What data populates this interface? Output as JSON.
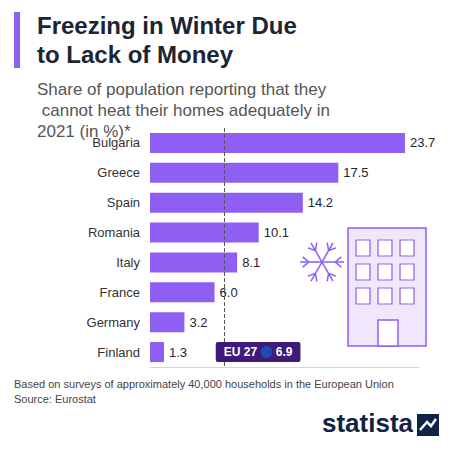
{
  "chart_data": {
    "type": "bar",
    "orientation": "horizontal",
    "title": "Freezing in Winter Due to Lack of Money",
    "subtitle": "Share of population reporting that they cannot heat their homes adequately in 2021 (in %)*",
    "categories": [
      "Bulgaria",
      "Greece",
      "Spain",
      "Romania",
      "Italy",
      "France",
      "Germany",
      "Finland"
    ],
    "values": [
      23.7,
      17.5,
      14.2,
      10.1,
      8.1,
      6.0,
      3.2,
      1.3
    ],
    "value_labels": [
      "23.7",
      "17.5",
      "14.2",
      "10.1",
      "8.1",
      "6.0",
      "3.2",
      "1.3"
    ],
    "color": "#8f5ef2",
    "data_labels": true,
    "xlim": [
      0,
      25
    ],
    "grid": false,
    "tick_labels": false,
    "annotations": [
      {
        "label": "EU 27",
        "value": 6.9,
        "line_style": "dashed"
      }
    ],
    "note": "Based on surveys of approximately 40,000 households in the European Union",
    "source": "Source: Eurostat",
    "branding": "statista"
  }
}
